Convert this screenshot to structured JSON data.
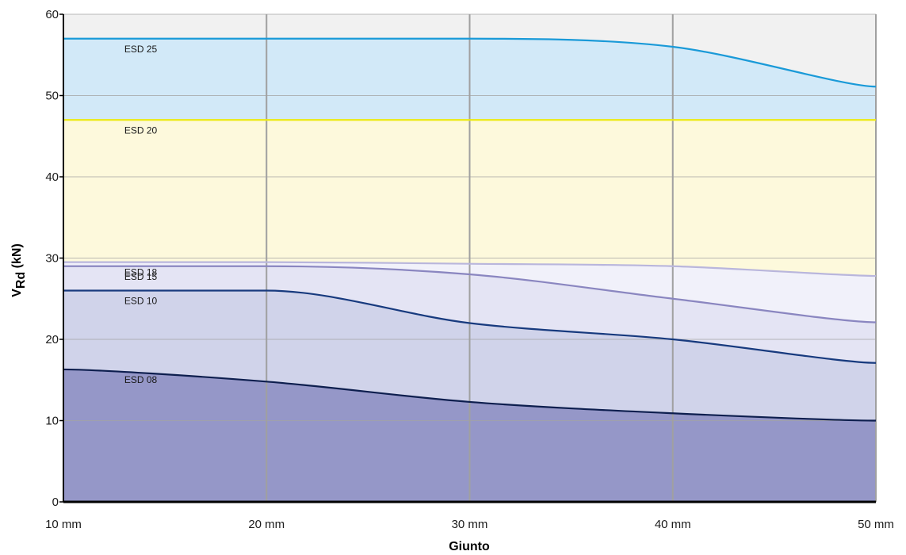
{
  "chart_data": {
    "type": "area",
    "title": "",
    "xlabel": "Giunto",
    "ylabel": {
      "main": "V",
      "sub": "Rd",
      "rest": " (kN)"
    },
    "x": [
      10,
      20,
      30,
      40,
      50
    ],
    "x_tick_labels": [
      "10 mm",
      "20 mm",
      "30 mm",
      "40 mm",
      "50 mm"
    ],
    "y_ticks": [
      0,
      10,
      20,
      30,
      40,
      50,
      60
    ],
    "xlim": [
      10,
      50
    ],
    "ylim": [
      0,
      60
    ],
    "grid": true,
    "series": [
      {
        "name": "ESD 08",
        "values": [
          16.3,
          14.8,
          12.3,
          10.9,
          10.0
        ],
        "color": "#0d1e4e",
        "fill": "#9597c8"
      },
      {
        "name": "ESD 10",
        "values": [
          26.0,
          26.0,
          22.0,
          20.0,
          17.1
        ],
        "color": "#173a7e",
        "fill": "#d0d3ea"
      },
      {
        "name": "ESD 15",
        "values": [
          29.0,
          29.0,
          28.0,
          25.0,
          22.1
        ],
        "color": "#8a86c0",
        "fill": "#e4e4f4"
      },
      {
        "name": "ESD 18",
        "values": [
          29.5,
          29.5,
          29.3,
          29.0,
          27.8
        ],
        "color": "#b9b6dc",
        "fill": "#f1f1fa"
      },
      {
        "name": "ESD 20",
        "values": [
          47.0,
          47.0,
          47.0,
          47.0,
          47.0
        ],
        "color": "#ecea12",
        "fill": "#fdf9dc"
      },
      {
        "name": "ESD 25",
        "values": [
          57.0,
          57.0,
          57.0,
          56.0,
          51.1
        ],
        "color": "#1a9ad8",
        "fill": "#d2e9f8"
      }
    ],
    "background_fill": "#f1f1f1",
    "grid_color": "#a3a3a3",
    "vertical_grid_color": "#a0a0a0"
  }
}
